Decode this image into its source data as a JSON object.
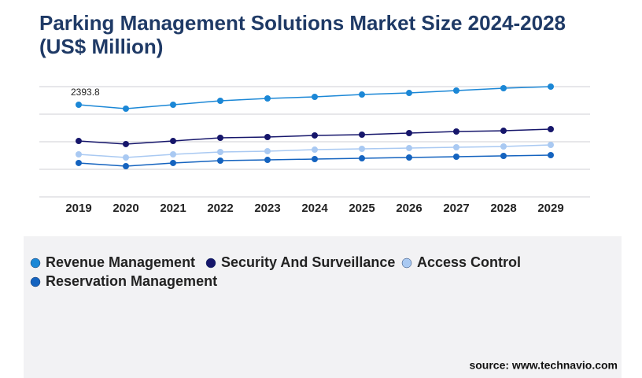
{
  "chart_data": {
    "type": "line",
    "title": "Parking Management Solutions Market Size 2024-2028 (US$ Million)",
    "categories": [
      "2019",
      "2020",
      "2021",
      "2022",
      "2023",
      "2024",
      "2025",
      "2026",
      "2027",
      "2028",
      "2029"
    ],
    "series": [
      {
        "name": "Revenue Management",
        "color": "#1b87d6",
        "values": [
          2393.8,
          2291,
          2393.8,
          2496,
          2557,
          2598,
          2659,
          2700,
          2762,
          2823,
          2864
        ]
      },
      {
        "name": "Security And Surveillance",
        "color": "#16166b",
        "values": [
          1452,
          1371,
          1452,
          1534,
          1555,
          1596,
          1616,
          1657,
          1698,
          1718,
          1759
        ]
      },
      {
        "name": "Access Control",
        "color": "#a9c9f2",
        "values": [
          1105,
          1023,
          1105,
          1166,
          1187,
          1227,
          1248,
          1268,
          1289,
          1309,
          1350
        ]
      },
      {
        "name": "Reservation Management",
        "color": "#1463bf",
        "values": [
          880,
          798,
          880,
          941,
          961,
          982,
          1002,
          1023,
          1043,
          1064,
          1084
        ]
      }
    ],
    "ylim": [
      0,
      2864
    ],
    "grid": true,
    "source": "source: www.technavio.com"
  }
}
